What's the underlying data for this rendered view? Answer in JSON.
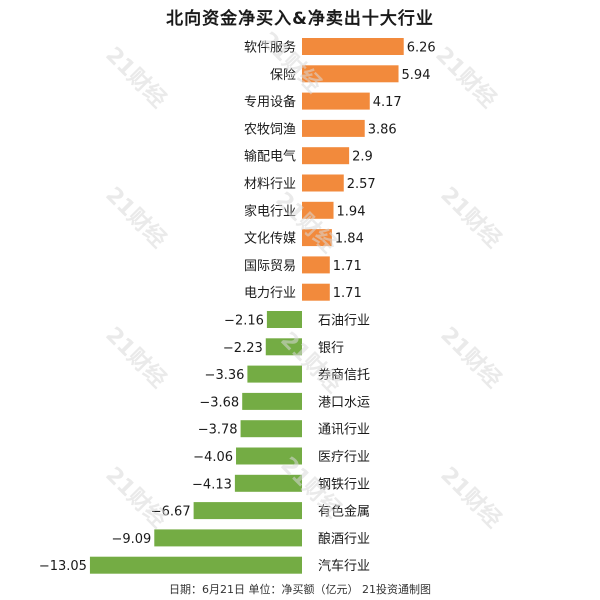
{
  "title": "北向资金净买入&净卖出十大行业",
  "footer": "日期：6月21日 单位：净买额（亿元） 21投资通制图",
  "watermark": "21财经",
  "colors": {
    "buy": "#F28A3C",
    "sell": "#74AC44"
  },
  "chart_data": {
    "type": "bar",
    "orientation": "horizontal",
    "title": "北向资金净买入&净卖出十大行业",
    "categories": [
      "软件服务",
      "保险",
      "专用设备",
      "农牧饲渔",
      "输配电气",
      "材料行业",
      "家电行业",
      "文化传媒",
      "国际贸易",
      "电力行业",
      "石油行业",
      "银行",
      "券商信托",
      "港口水运",
      "通讯行业",
      "医疗行业",
      "钢铁行业",
      "有色金属",
      "酿酒行业",
      "汽车行业"
    ],
    "values": [
      6.26,
      5.94,
      4.17,
      3.86,
      2.9,
      2.57,
      1.94,
      1.84,
      1.71,
      1.71,
      -2.16,
      -2.23,
      -3.36,
      -3.68,
      -3.78,
      -4.06,
      -4.13,
      -6.67,
      -9.09,
      -13.05
    ],
    "value_labels": [
      "6.26",
      "5.94",
      "4.17",
      "3.86",
      "2.9",
      "2.57",
      "1.94",
      "1.84",
      "1.71",
      "1.71",
      "−2.16",
      "−2.23",
      "−3.36",
      "−3.68",
      "−3.78",
      "−4.06",
      "−4.13",
      "−6.67",
      "−9.09",
      "−13.05"
    ],
    "xlim": [
      -13.05,
      6.26
    ],
    "grid": false,
    "legend": "none"
  }
}
